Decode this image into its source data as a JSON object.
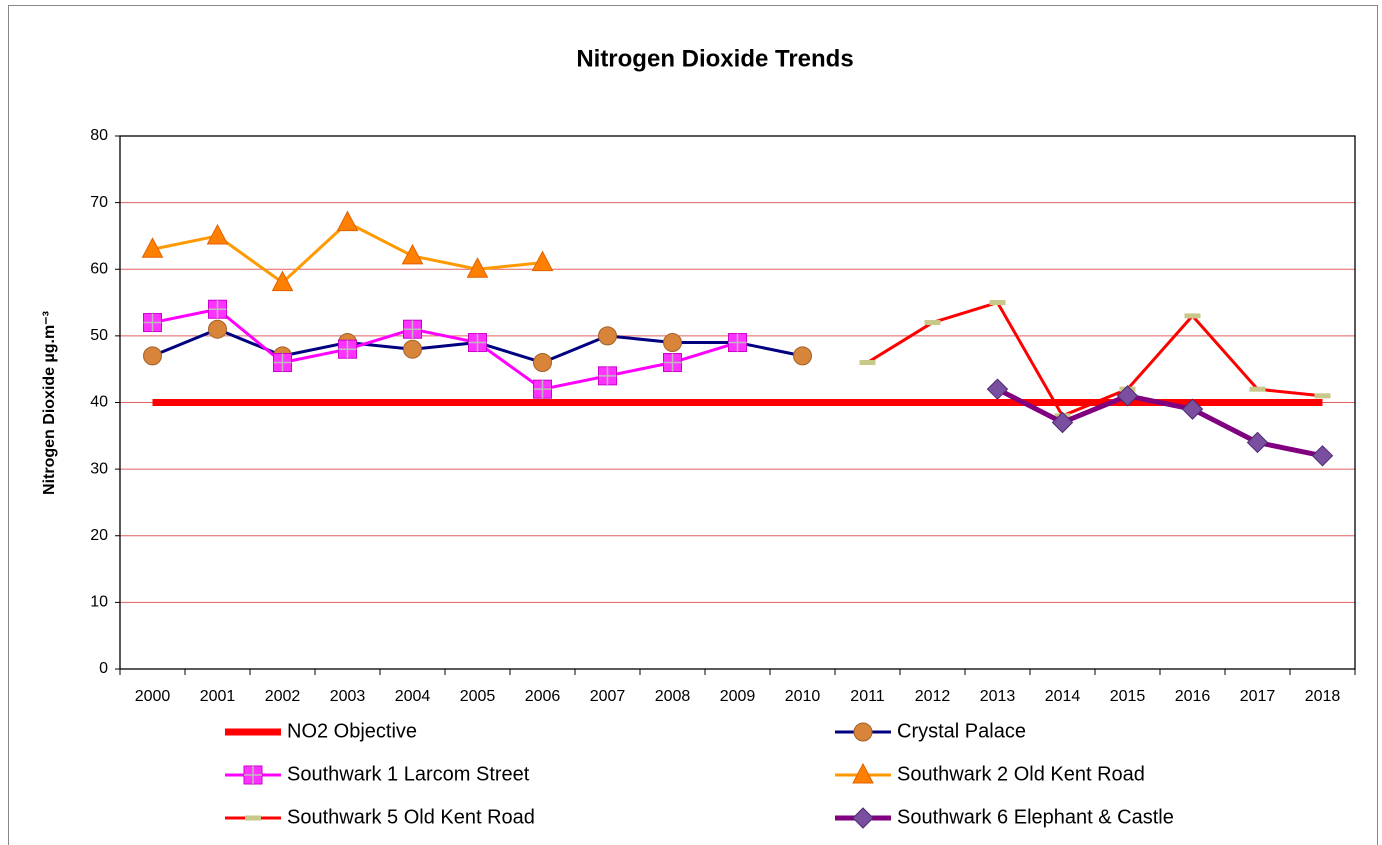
{
  "chart_data": {
    "type": "line",
    "title": "Nitrogen Dioxide Trends",
    "y_label": "Nitrogen Dioxide µg.m⁻³",
    "categories": [
      "2000",
      "2001",
      "2002",
      "2003",
      "2004",
      "2005",
      "2006",
      "2007",
      "2008",
      "2009",
      "2010",
      "2011",
      "2012",
      "2013",
      "2014",
      "2015",
      "2016",
      "2017",
      "2018"
    ],
    "ylim": [
      0,
      80
    ],
    "yticks": [
      0,
      10,
      20,
      30,
      40,
      50,
      60,
      70,
      80
    ],
    "grid": true,
    "grid_color": "#e06060",
    "legend": "bottom",
    "series": [
      {
        "name": "NO2 Objective",
        "color": "#ff0000",
        "width": 7,
        "marker": "none",
        "marker_color": "#ff0000",
        "values": [
          40,
          40,
          40,
          40,
          40,
          40,
          40,
          40,
          40,
          40,
          40,
          40,
          40,
          40,
          40,
          40,
          40,
          40,
          40
        ]
      },
      {
        "name": "Crystal Palace",
        "color": "#000080",
        "width": 3,
        "marker": "circle",
        "marker_color": "#d9843b",
        "values": [
          47,
          51,
          47,
          49,
          48,
          49,
          46,
          50,
          49,
          49,
          47,
          null,
          null,
          null,
          null,
          null,
          null,
          null,
          null
        ]
      },
      {
        "name": "Southwark 1 Larcom Street",
        "color": "#ff00ff",
        "width": 3,
        "marker": "plus-square",
        "marker_color": "#ff33ff",
        "values": [
          52,
          54,
          46,
          48,
          51,
          49,
          42,
          44,
          46,
          49,
          null,
          null,
          null,
          null,
          null,
          null,
          null,
          null,
          null
        ]
      },
      {
        "name": "Southwark 2 Old Kent Road",
        "color": "#ff9900",
        "width": 3,
        "marker": "triangle",
        "marker_color": "#ff8000",
        "values": [
          63,
          65,
          58,
          67,
          62,
          60,
          61,
          null,
          null,
          null,
          null,
          null,
          null,
          null,
          null,
          null,
          null,
          null,
          null
        ]
      },
      {
        "name": "Southwark 5 Old Kent Road",
        "color": "#ff0000",
        "width": 3,
        "marker": "dash",
        "marker_color": "#c8c88a",
        "values": [
          null,
          null,
          null,
          null,
          null,
          null,
          null,
          null,
          null,
          null,
          null,
          46,
          52,
          55,
          38,
          42,
          53,
          42,
          41
        ]
      },
      {
        "name": "Southwark 6 Elephant & Castle",
        "color": "#800080",
        "width": 5,
        "marker": "diamond",
        "marker_color": "#7a4fa0",
        "values": [
          null,
          null,
          null,
          null,
          null,
          null,
          null,
          null,
          null,
          null,
          null,
          null,
          null,
          42,
          37,
          41,
          39,
          34,
          32
        ]
      }
    ]
  }
}
